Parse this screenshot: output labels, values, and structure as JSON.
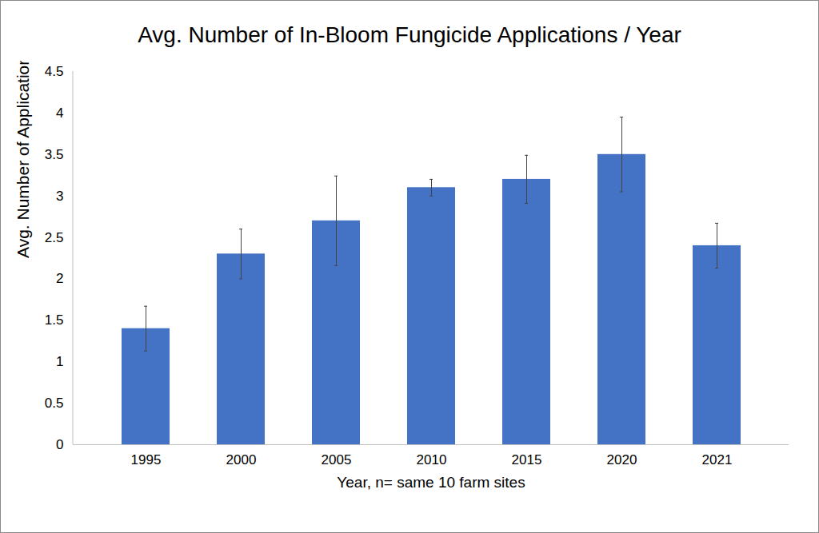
{
  "chart_data": {
    "type": "bar",
    "title": "Avg. Number of In-Bloom Fungicide Applications / Year",
    "x_label": "Year, n= same 10 farm sites",
    "y_label": "Avg. Number of Applications",
    "categories": [
      "1995",
      "2000",
      "2005",
      "2010",
      "2015",
      "2020",
      "2021"
    ],
    "values": [
      1.4,
      2.3,
      2.7,
      3.1,
      3.2,
      3.5,
      2.4
    ],
    "errors": [
      0.27,
      0.3,
      0.54,
      0.1,
      0.29,
      0.45,
      0.27
    ],
    "color": "#4472c4",
    "ylim": [
      0,
      4.5
    ],
    "yticks": [
      0,
      0.5,
      1,
      1.5,
      2,
      2.5,
      3,
      3.5,
      4,
      4.5
    ],
    "grid": false
  }
}
